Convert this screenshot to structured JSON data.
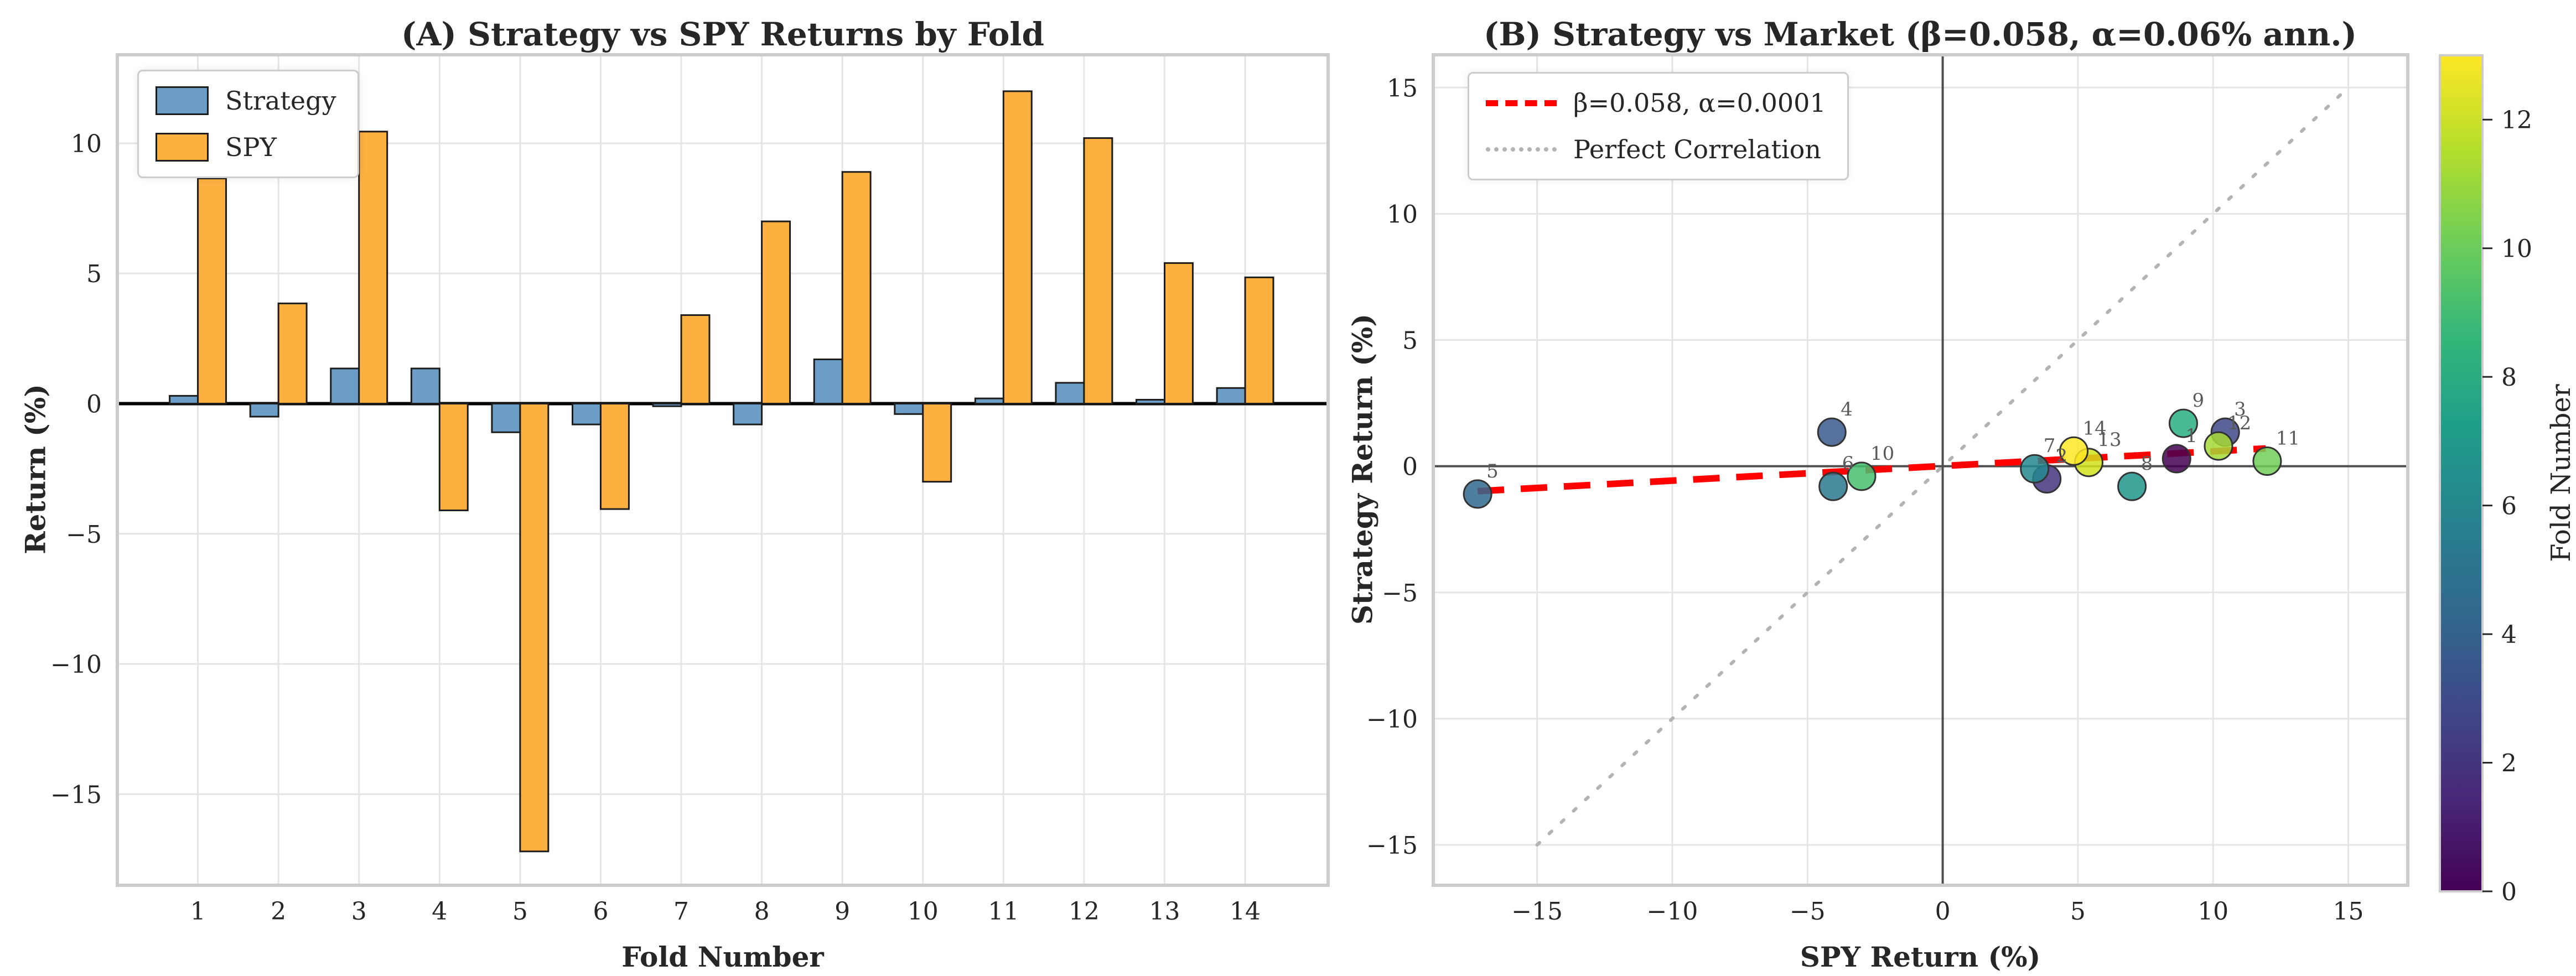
{
  "figure": {
    "background": "#ffffff",
    "text_color": "#262626",
    "grid_color": "#e5e5e5",
    "spine_color": "#cccccc"
  },
  "chart_data": [
    {
      "type": "bar",
      "panel": "A",
      "title": "(A) Strategy vs SPY Returns by Fold",
      "xlabel": "Fold Number",
      "ylabel": "Return (%)",
      "categories": [
        "1",
        "2",
        "3",
        "4",
        "5",
        "6",
        "7",
        "8",
        "9",
        "10",
        "11",
        "12",
        "13",
        "14"
      ],
      "series": [
        {
          "name": "Strategy",
          "color": "#6C9DC6",
          "values": [
            0.3,
            -0.5,
            1.35,
            1.35,
            -1.1,
            -0.8,
            -0.1,
            -0.8,
            1.7,
            -0.4,
            0.2,
            0.8,
            0.15,
            0.6
          ]
        },
        {
          "name": "SPY",
          "color": "#FBB040",
          "values": [
            8.65,
            3.85,
            10.45,
            -4.1,
            -17.2,
            -4.05,
            3.4,
            7.0,
            8.9,
            -3.0,
            12.0,
            10.2,
            5.4,
            4.85
          ]
        }
      ],
      "bar_edge_color": "#1c1c1c",
      "yticks": [
        10,
        5,
        0,
        -5,
        -10,
        -15
      ],
      "ylim": [
        -18.5,
        13.4
      ],
      "xlim": [
        0,
        15.03
      ],
      "zero_line_color": "#000000",
      "grid": true,
      "legend_position": "upper-left"
    },
    {
      "type": "scatter",
      "panel": "B",
      "title": "(B) Strategy vs Market (β=0.058, α=0.06% ann.)",
      "xlabel": "SPY Return (%)",
      "ylabel": "Strategy Return (%)",
      "points": [
        {
          "fold": "1",
          "x": 8.65,
          "y": 0.3,
          "color": "#440154"
        },
        {
          "fold": "2",
          "x": 3.85,
          "y": -0.5,
          "color": "#46327e"
        },
        {
          "fold": "3",
          "x": 10.45,
          "y": 1.35,
          "color": "#404688"
        },
        {
          "fold": "4",
          "x": -4.1,
          "y": 1.35,
          "color": "#38588c"
        },
        {
          "fold": "5",
          "x": -17.2,
          "y": -1.1,
          "color": "#30698e"
        },
        {
          "fold": "6",
          "x": -4.05,
          "y": -0.8,
          "color": "#2a788e"
        },
        {
          "fold": "7",
          "x": 3.4,
          "y": -0.1,
          "color": "#23888e"
        },
        {
          "fold": "8",
          "x": 7.0,
          "y": -0.8,
          "color": "#1f978b"
        },
        {
          "fold": "9",
          "x": 8.9,
          "y": 1.7,
          "color": "#29af7f"
        },
        {
          "fold": "10",
          "x": -3.0,
          "y": -0.4,
          "color": "#46c06f"
        },
        {
          "fold": "11",
          "x": 12.0,
          "y": 0.2,
          "color": "#70cf57"
        },
        {
          "fold": "12",
          "x": 10.2,
          "y": 0.8,
          "color": "#a5db36"
        },
        {
          "fold": "13",
          "x": 5.4,
          "y": 0.15,
          "color": "#d2e21b"
        },
        {
          "fold": "14",
          "x": 4.85,
          "y": 0.6,
          "color": "#fde725"
        }
      ],
      "marker": {
        "radius": 25,
        "opacity": 0.85,
        "edge_color": "#333333"
      },
      "annotation_color": "#595959",
      "regression_line": {
        "label": "β=0.058, α=0.0001",
        "slope": 0.058,
        "intercept": 0.01,
        "x_range": [
          -17.2,
          11.95
        ],
        "color": "#ff0000",
        "style": "dashed"
      },
      "identity_line": {
        "label": "Perfect Correlation",
        "from": [
          -15,
          -15
        ],
        "to": [
          15,
          15
        ],
        "color": "#b3b3b3",
        "style": "dotted"
      },
      "xticks": [
        -15,
        -10,
        -5,
        0,
        5,
        10,
        15
      ],
      "yticks": [
        15,
        10,
        5,
        0,
        -5,
        -10,
        -15
      ],
      "xlim": [
        -18.84,
        17.2
      ],
      "ylim": [
        -16.6,
        16.3
      ],
      "zero_line_color": "#4d4d4d",
      "grid": true,
      "colorbar": {
        "label": "Fold Number",
        "ticks": [
          0,
          2,
          4,
          6,
          8,
          10,
          12
        ],
        "range": [
          0,
          13
        ],
        "colormap": "viridis",
        "gradient_stops": [
          "#440154",
          "#482878",
          "#3e4989",
          "#31688e",
          "#26828e",
          "#1f9e89",
          "#35b779",
          "#6ece58",
          "#b5de2b",
          "#fde725"
        ]
      }
    }
  ]
}
